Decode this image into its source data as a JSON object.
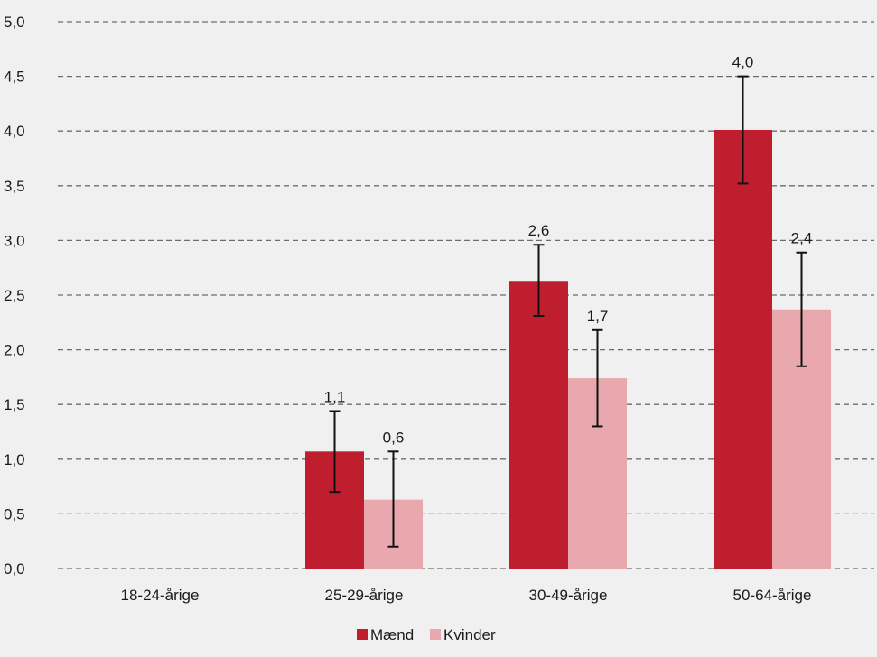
{
  "chart_data": {
    "type": "bar",
    "title": "",
    "xlabel": "",
    "ylabel": "",
    "categories": [
      "18-24-årige",
      "25-29-årige",
      "30-49-årige",
      "50-64-årige"
    ],
    "ylim": [
      0,
      5
    ],
    "yticks": [
      0,
      0.5,
      1,
      1.5,
      2,
      2.5,
      3,
      3.5,
      4,
      4.5,
      5
    ],
    "ytick_labels": [
      "0,0",
      "0,5",
      "1,0",
      "1,5",
      "2,0",
      "2,5",
      "3,0",
      "3,5",
      "4,0",
      "4,5",
      "5,0"
    ],
    "grid": true,
    "legend_position": "bottom-center",
    "series": [
      {
        "name": "Mænd",
        "color": "#be1e2d",
        "values": [
          null,
          1.07,
          2.63,
          4.01
        ],
        "labels": [
          "",
          "1,1",
          "2,6",
          "4,0"
        ],
        "error_low": [
          null,
          0.7,
          2.31,
          3.52
        ],
        "error_high": [
          null,
          1.44,
          2.96,
          4.5
        ]
      },
      {
        "name": "Kvinder",
        "color": "#e8a8ad",
        "values": [
          null,
          0.63,
          1.74,
          2.37
        ],
        "labels": [
          "",
          "0,6",
          "1,7",
          "2,4"
        ],
        "error_low": [
          null,
          0.2,
          1.3,
          1.85
        ],
        "error_high": [
          null,
          1.07,
          2.18,
          2.89
        ]
      }
    ]
  }
}
